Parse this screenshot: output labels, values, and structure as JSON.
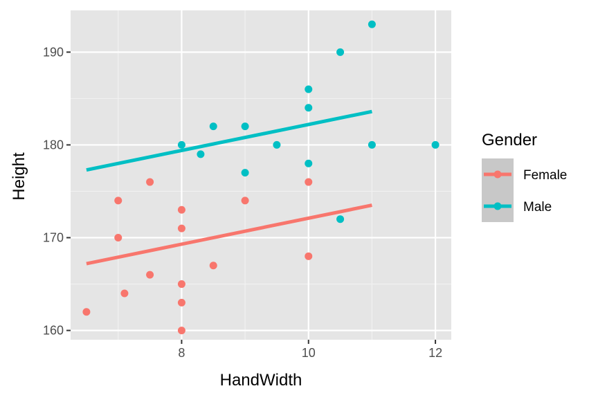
{
  "chart_data": {
    "type": "scatter",
    "xlabel": "HandWidth",
    "ylabel": "Height",
    "xlim": [
      6.25,
      12.25
    ],
    "ylim": [
      159,
      194.5
    ],
    "x_ticks": [
      8,
      10,
      12
    ],
    "x_minor": [
      7,
      9,
      11
    ],
    "y_ticks": [
      160,
      170,
      180,
      190
    ],
    "y_minor": [
      165,
      175,
      185
    ],
    "grid": true,
    "legend": {
      "title": "Gender",
      "placement": "right",
      "entries": [
        {
          "label": "Female",
          "color": "#F8766D"
        },
        {
          "label": "Male",
          "color": "#00BFC4"
        }
      ]
    },
    "series": [
      {
        "name": "Female",
        "color": "#F8766D",
        "points": [
          [
            6.5,
            162
          ],
          [
            7,
            174
          ],
          [
            7,
            170
          ],
          [
            7.1,
            164
          ],
          [
            7.5,
            176
          ],
          [
            7.5,
            166
          ],
          [
            8,
            173
          ],
          [
            8,
            171
          ],
          [
            8,
            165
          ],
          [
            8,
            163
          ],
          [
            8,
            160
          ],
          [
            8.5,
            167
          ],
          [
            9,
            174
          ],
          [
            10,
            176
          ],
          [
            10,
            168
          ]
        ],
        "fit": [
          [
            6.5,
            167.2
          ],
          [
            11,
            173.5
          ]
        ]
      },
      {
        "name": "Male",
        "color": "#00BFC4",
        "points": [
          [
            8,
            180
          ],
          [
            8.3,
            179
          ],
          [
            8.5,
            182
          ],
          [
            9,
            182
          ],
          [
            9,
            177
          ],
          [
            9.5,
            180
          ],
          [
            10,
            186
          ],
          [
            10,
            184
          ],
          [
            10,
            178
          ],
          [
            10.5,
            190
          ],
          [
            10.5,
            172
          ],
          [
            11,
            193
          ],
          [
            11,
            180
          ],
          [
            12,
            180
          ]
        ],
        "fit": [
          [
            6.5,
            177.3
          ],
          [
            11,
            183.6
          ]
        ]
      }
    ]
  }
}
